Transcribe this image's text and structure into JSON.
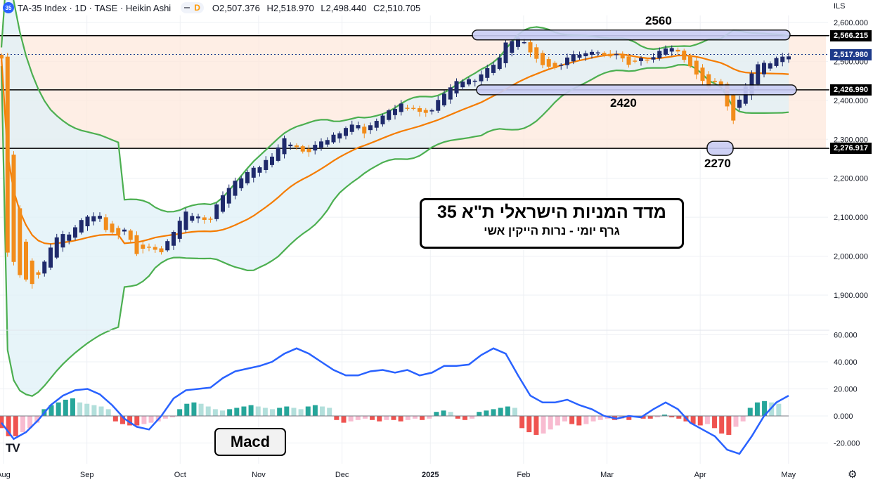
{
  "header": {
    "symbol_badge": "35",
    "title": "TA-35 Index · 1D · TASE · Heikin Ashi",
    "pill_label": "D",
    "open": "O2,507.376",
    "high": "H2,518.970",
    "low": "L2,498.440",
    "close": "C2,510.705"
  },
  "currency": "ILS",
  "price_tags": {
    "top": "2,566.215",
    "current": "2,517.980",
    "middle": "2,426.990",
    "bottom": "2,276.917"
  },
  "annotations": {
    "level_top": "2560",
    "level_mid": "2420",
    "level_low": "2270",
    "title_main": "מדד המניות הישראלי ת\"א 35",
    "title_sub": "גרף  יומי   -  נרות הייקין אשי",
    "indicator_label": "Macd",
    "logo": "TV"
  },
  "colors": {
    "bull": "#1f2a6b",
    "bear": "#f28c1a",
    "bb_band": "#4caf50",
    "bb_fill": "#dff0f7",
    "ma": "#f57c00",
    "macd_line": "#2962ff",
    "hist_pos": "#26a69a",
    "hist_neg": "#ef5350",
    "range_fill": "#fde8dc",
    "level_box": "#c9cdf5"
  },
  "chart_data": [
    {
      "type": "candlestick",
      "series_name": "TA-35 Index",
      "x_ticks": [
        "Aug",
        "Sep",
        "Oct",
        "Nov",
        "Dec",
        "2025",
        "Feb",
        "Mar",
        "Apr",
        "May"
      ],
      "y_ticks": [
        "2,600.000",
        "2,500.000",
        "2,400.000",
        "2,300.000",
        "2,200.000",
        "2,100.000",
        "2,000.000",
        "1,900.000"
      ],
      "ylim": [
        1860,
        2615
      ],
      "horizontal_levels": [
        2566.215,
        2426.99,
        2276.917
      ],
      "current_price": 2517.98,
      "close_path": [
        [
          1,
          2010
        ],
        [
          3,
          1955
        ],
        [
          5,
          1925
        ],
        [
          7,
          1985
        ],
        [
          9,
          2050
        ],
        [
          11,
          2060
        ],
        [
          13,
          2090
        ],
        [
          14,
          2105
        ],
        [
          16,
          2100
        ],
        [
          17,
          2070
        ],
        [
          19,
          2050
        ],
        [
          20,
          2070
        ],
        [
          21,
          2040
        ],
        [
          22,
          2010
        ],
        [
          23,
          2020
        ],
        [
          25,
          2020
        ],
        [
          26,
          2010
        ],
        [
          27,
          2035
        ],
        [
          28,
          2065
        ],
        [
          29,
          2090
        ],
        [
          30,
          2110
        ],
        [
          32,
          2100
        ],
        [
          34,
          2095
        ],
        [
          35,
          2130
        ],
        [
          36,
          2160
        ],
        [
          38,
          2190
        ],
        [
          40,
          2215
        ],
        [
          42,
          2230
        ],
        [
          44,
          2260
        ],
        [
          46,
          2300
        ],
        [
          47,
          2290
        ],
        [
          48,
          2280
        ],
        [
          49,
          2265
        ],
        [
          50,
          2270
        ],
        [
          51,
          2285
        ],
        [
          52,
          2290
        ],
        [
          53,
          2300
        ],
        [
          54,
          2310
        ],
        [
          56,
          2330
        ],
        [
          58,
          2340
        ],
        [
          59,
          2315
        ],
        [
          61,
          2350
        ],
        [
          63,
          2370
        ],
        [
          65,
          2390
        ],
        [
          67,
          2380
        ],
        [
          68,
          2368
        ],
        [
          70,
          2375
        ],
        [
          72,
          2420
        ],
        [
          74,
          2445
        ],
        [
          75,
          2450
        ],
        [
          77,
          2455
        ],
        [
          79,
          2480
        ],
        [
          81,
          2510
        ],
        [
          82,
          2545
        ],
        [
          83,
          2555
        ],
        [
          84,
          2560
        ],
        [
          85,
          2545
        ],
        [
          86,
          2525
        ],
        [
          87,
          2505
        ],
        [
          88,
          2495
        ],
        [
          90,
          2480
        ],
        [
          92,
          2510
        ],
        [
          94,
          2520
        ],
        [
          96,
          2520
        ],
        [
          97,
          2525
        ],
        [
          98,
          2515
        ],
        [
          100,
          2520
        ],
        [
          101,
          2505
        ],
        [
          102,
          2495
        ],
        [
          104,
          2505
        ],
        [
          106,
          2510
        ],
        [
          108,
          2535
        ],
        [
          110,
          2530
        ],
        [
          111,
          2505
        ],
        [
          112,
          2485
        ],
        [
          113,
          2470
        ],
        [
          114,
          2450
        ],
        [
          115,
          2430
        ],
        [
          116,
          2450
        ],
        [
          117,
          2435
        ],
        [
          118,
          2380
        ],
        [
          119,
          2350
        ],
        [
          120,
          2400
        ],
        [
          121,
          2440
        ],
        [
          122,
          2470
        ],
        [
          123,
          2490
        ],
        [
          124,
          2500
        ],
        [
          125,
          2495
        ],
        [
          126,
          2505
        ],
        [
          127,
          2515
        ],
        [
          128,
          2512
        ]
      ],
      "indicators": [
        "Bollinger Bands",
        "Moving Average"
      ]
    },
    {
      "type": "line+histogram",
      "series_name": "Macd",
      "y_ticks": [
        "60.000",
        "40.000",
        "20.000",
        "0.000",
        "-20.000"
      ],
      "ylim": [
        -28,
        62
      ],
      "macd_line": [
        [
          0,
          -5
        ],
        [
          2,
          -17
        ],
        [
          4,
          -12
        ],
        [
          6,
          -3
        ],
        [
          8,
          8
        ],
        [
          10,
          15
        ],
        [
          12,
          19
        ],
        [
          14,
          20
        ],
        [
          16,
          16
        ],
        [
          18,
          8
        ],
        [
          20,
          -2
        ],
        [
          22,
          -8
        ],
        [
          24,
          -10
        ],
        [
          26,
          0
        ],
        [
          28,
          13
        ],
        [
          30,
          19
        ],
        [
          32,
          20
        ],
        [
          34,
          21
        ],
        [
          36,
          28
        ],
        [
          38,
          33
        ],
        [
          40,
          35
        ],
        [
          42,
          37
        ],
        [
          44,
          40
        ],
        [
          46,
          46
        ],
        [
          48,
          50
        ],
        [
          50,
          46
        ],
        [
          52,
          40
        ],
        [
          54,
          34
        ],
        [
          56,
          30
        ],
        [
          58,
          30
        ],
        [
          60,
          33
        ],
        [
          62,
          34
        ],
        [
          64,
          32
        ],
        [
          66,
          34
        ],
        [
          68,
          30
        ],
        [
          70,
          32
        ],
        [
          72,
          37
        ],
        [
          74,
          37
        ],
        [
          76,
          38
        ],
        [
          78,
          45
        ],
        [
          80,
          50
        ],
        [
          82,
          46
        ],
        [
          84,
          30
        ],
        [
          86,
          15
        ],
        [
          88,
          10
        ],
        [
          90,
          10
        ],
        [
          92,
          12
        ],
        [
          94,
          8
        ],
        [
          96,
          5
        ],
        [
          98,
          0
        ],
        [
          100,
          -2
        ],
        [
          102,
          0
        ],
        [
          104,
          -1
        ],
        [
          106,
          5
        ],
        [
          108,
          10
        ],
        [
          110,
          5
        ],
        [
          112,
          -5
        ],
        [
          114,
          -10
        ],
        [
          116,
          -15
        ],
        [
          118,
          -25
        ],
        [
          120,
          -28
        ],
        [
          122,
          -15
        ],
        [
          124,
          0
        ],
        [
          126,
          10
        ],
        [
          128,
          15
        ]
      ],
      "histogram": [
        [
          0,
          -9
        ],
        [
          1,
          -15
        ],
        [
          2,
          -15
        ],
        [
          3,
          -12
        ],
        [
          4,
          -9
        ],
        [
          5,
          -5
        ],
        [
          6,
          5
        ],
        [
          7,
          8
        ],
        [
          8,
          10
        ],
        [
          9,
          12
        ],
        [
          10,
          13
        ],
        [
          11,
          10
        ],
        [
          12,
          9
        ],
        [
          13,
          8
        ],
        [
          14,
          7
        ],
        [
          15,
          5
        ],
        [
          16,
          -4
        ],
        [
          17,
          -6
        ],
        [
          18,
          -7
        ],
        [
          19,
          -7
        ],
        [
          20,
          -6
        ],
        [
          21,
          -5
        ],
        [
          22,
          -4
        ],
        [
          23,
          -2
        ],
        [
          24,
          -1
        ],
        [
          25,
          5
        ],
        [
          26,
          9
        ],
        [
          27,
          10
        ],
        [
          28,
          9
        ],
        [
          29,
          7
        ],
        [
          30,
          5
        ],
        [
          31,
          4
        ],
        [
          32,
          5
        ],
        [
          33,
          6
        ],
        [
          34,
          7
        ],
        [
          35,
          8
        ],
        [
          36,
          7
        ],
        [
          37,
          6
        ],
        [
          38,
          5
        ],
        [
          39,
          6
        ],
        [
          40,
          7
        ],
        [
          41,
          6
        ],
        [
          42,
          5
        ],
        [
          43,
          7
        ],
        [
          44,
          8
        ],
        [
          45,
          7
        ],
        [
          46,
          6
        ],
        [
          47,
          -3
        ],
        [
          48,
          -5
        ],
        [
          49,
          -4
        ],
        [
          50,
          -3
        ],
        [
          51,
          -2
        ],
        [
          52,
          -3
        ],
        [
          53,
          -4
        ],
        [
          54,
          -3
        ],
        [
          55,
          -3
        ],
        [
          56,
          -4
        ],
        [
          57,
          -3
        ],
        [
          58,
          -2
        ],
        [
          59,
          -3
        ],
        [
          60,
          -2
        ],
        [
          61,
          3
        ],
        [
          62,
          4
        ],
        [
          63,
          3
        ],
        [
          64,
          -2
        ],
        [
          65,
          -3
        ],
        [
          66,
          -2
        ],
        [
          67,
          3
        ],
        [
          68,
          4
        ],
        [
          69,
          5
        ],
        [
          70,
          6
        ],
        [
          71,
          7
        ],
        [
          72,
          6
        ],
        [
          73,
          -9
        ],
        [
          74,
          -12
        ],
        [
          75,
          -14
        ],
        [
          76,
          -13
        ],
        [
          77,
          -10
        ],
        [
          78,
          -7
        ],
        [
          79,
          -4
        ],
        [
          80,
          -6
        ],
        [
          81,
          -7
        ],
        [
          82,
          -6
        ],
        [
          83,
          -4
        ],
        [
          84,
          -3
        ],
        [
          85,
          -2
        ],
        [
          86,
          -3
        ],
        [
          87,
          -2
        ],
        [
          88,
          -3
        ],
        [
          89,
          -1
        ],
        [
          90,
          -2
        ],
        [
          91,
          -2
        ],
        [
          92,
          -1
        ],
        [
          93,
          1
        ],
        [
          94,
          -1
        ],
        [
          95,
          -2
        ],
        [
          96,
          -4
        ],
        [
          97,
          -6
        ],
        [
          98,
          -7
        ],
        [
          99,
          -6
        ],
        [
          100,
          -9
        ],
        [
          101,
          -13
        ],
        [
          102,
          -14
        ],
        [
          103,
          -8
        ],
        [
          104,
          -4
        ],
        [
          105,
          6
        ],
        [
          106,
          10
        ],
        [
          107,
          11
        ],
        [
          108,
          10
        ],
        [
          109,
          9
        ]
      ]
    }
  ]
}
